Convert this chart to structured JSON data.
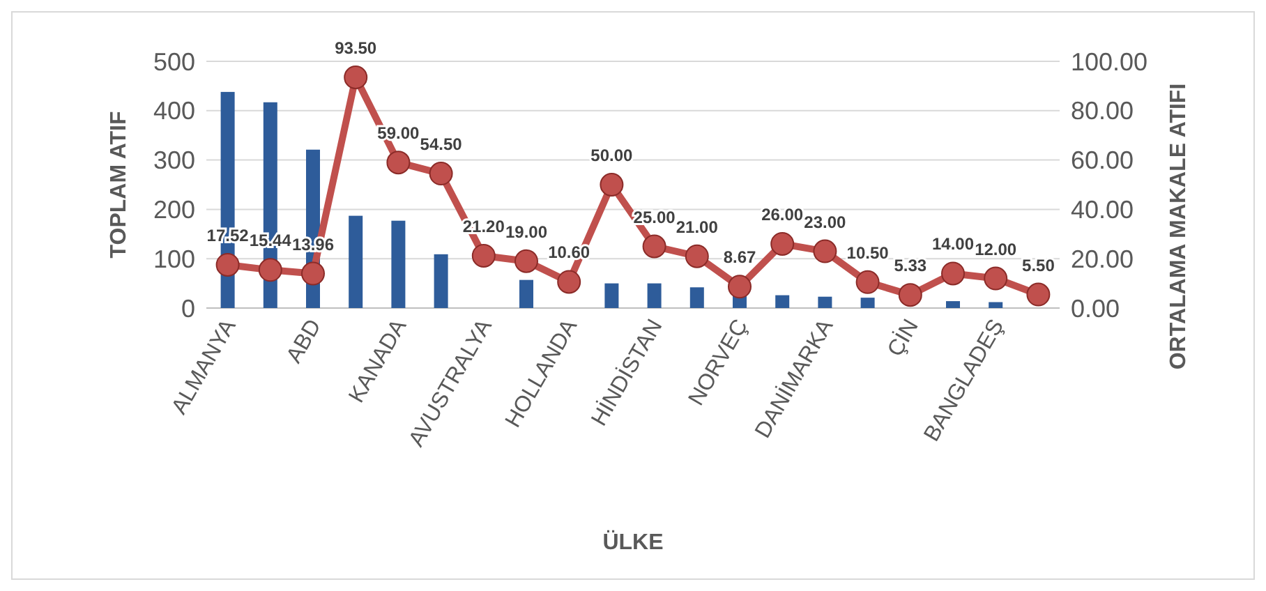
{
  "chart_data": {
    "type": "bar",
    "xlabel": "ÜLKE",
    "ylabel": "TOPLAM ATIF",
    "y2label": "ORTALAMA MAKALE ATIFI",
    "categories": [
      "ALMANYA",
      null,
      "ABD",
      null,
      "KANADA",
      null,
      "AVUSTRALYA",
      null,
      "HOLLANDA",
      null,
      "HİNDİSTAN",
      null,
      "NORVEÇ",
      null,
      "DANİMARKA",
      null,
      "ÇİN",
      null,
      "BANGLADEŞ",
      null
    ],
    "series": [
      {
        "color": "#2e5c9a",
        "values": [
          438,
          417,
          321,
          187,
          177,
          109,
          null,
          57,
          null,
          50,
          50,
          42,
          26,
          26,
          23,
          21,
          null,
          14,
          12,
          null
        ]
      },
      {
        "type": "line",
        "axis": "y2",
        "color": "#c0504d",
        "marker": "circle",
        "values": [
          17.52,
          15.44,
          13.96,
          93.5,
          59,
          54.5,
          21.2,
          19,
          10.6,
          50,
          25,
          21,
          8.67,
          26,
          23,
          10.5,
          5.33,
          14,
          12,
          5.5
        ],
        "value_labels": [
          "17.52",
          "15.44",
          "13.96",
          "93.50",
          "59.00",
          "54.50",
          "21.20",
          "19.00",
          "10.60",
          "50.00",
          "25.00",
          "21.00",
          "8.67",
          "26.00",
          "23.00",
          "10.50",
          "5.33",
          "14.00",
          "12.00",
          "5.50"
        ]
      }
    ],
    "ylim": [
      0,
      500
    ],
    "yticks": [
      0,
      100,
      200,
      300,
      400,
      500
    ],
    "y2lim": [
      0,
      100
    ],
    "y2ticks": [
      {
        "value": 0,
        "label": "0.00"
      },
      {
        "value": 20,
        "label": "20.00"
      },
      {
        "value": 40,
        "label": "40.00"
      },
      {
        "value": 60,
        "label": "60.00"
      },
      {
        "value": 80,
        "label": "80.00"
      },
      {
        "value": 100,
        "label": "100.00"
      }
    ],
    "grid": "y"
  }
}
